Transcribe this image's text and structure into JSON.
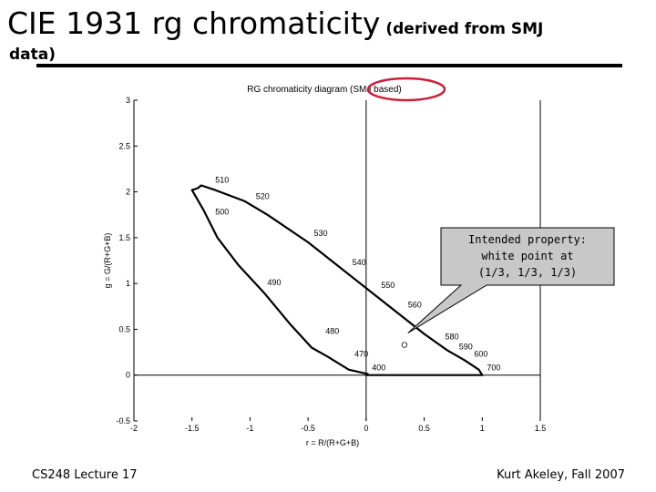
{
  "slide": {
    "title_main": "CIE 1931 rg chromaticity",
    "title_paren": "(derived from SMJ",
    "title_line2": "data)",
    "footer_left": "CS248 Lecture 17",
    "footer_right": "Kurt Akeley, Fall 2007"
  },
  "callout": {
    "lines": [
      "Intended property:",
      "white point at",
      "(1/3, 1/3, 1/3)"
    ]
  },
  "colors": {
    "highlight_ellipse": "#cc1f3a",
    "callout_fill": "#c8c8c8",
    "curve": "#000000"
  },
  "chart_data": {
    "type": "line",
    "title": "RG chromaticity diagram (SMJ based)",
    "xlabel": "r = R/(R+G+B)",
    "ylabel": "g = G/(R+G+B)",
    "xlim": [
      -2,
      1.5
    ],
    "ylim": [
      -0.5,
      3
    ],
    "xticks": [
      -2,
      -1.5,
      -1,
      -0.5,
      0,
      0.5,
      1,
      1.5
    ],
    "xtick_labels": [
      "-2",
      "-1.5",
      "-1",
      "-0.5",
      "0",
      "0.5",
      "1",
      "1.5"
    ],
    "yticks": [
      -0.5,
      0,
      0.5,
      1,
      1.5,
      2,
      2.5,
      3
    ],
    "ytick_labels": [
      "-0.5",
      "0",
      "0.5",
      "1",
      "1.5",
      "2",
      "2.5",
      "3"
    ],
    "grid": false,
    "series": [
      {
        "x": [
          0.02,
          -0.15,
          -0.33,
          -0.47,
          -0.65,
          -0.88,
          -1.1,
          -1.28,
          -1.4,
          -1.5,
          -1.45,
          -1.42,
          -1.3,
          -1.05,
          -0.85,
          -0.5,
          -0.2,
          0.1,
          0.35,
          0.5,
          0.7,
          0.85,
          0.97,
          1.0,
          0.75,
          0.35,
          0.0,
          0.02
        ],
        "y": [
          0.01,
          0.06,
          0.2,
          0.3,
          0.55,
          0.9,
          1.2,
          1.5,
          1.8,
          2.02,
          2.04,
          2.07,
          2.02,
          1.9,
          1.75,
          1.45,
          1.15,
          0.85,
          0.6,
          0.45,
          0.27,
          0.16,
          0.06,
          0.0,
          0.0,
          0.0,
          0.0,
          0.01
        ]
      }
    ],
    "wavelength_labels": [
      {
        "text": "400",
        "x": 0.05,
        "y": 0.05
      },
      {
        "text": "470",
        "x": -0.1,
        "y": 0.2
      },
      {
        "text": "480",
        "x": -0.35,
        "y": 0.45
      },
      {
        "text": "490",
        "x": -0.85,
        "y": 0.98
      },
      {
        "text": "500",
        "x": -1.3,
        "y": 1.75
      },
      {
        "text": "510",
        "x": -1.3,
        "y": 2.1
      },
      {
        "text": "520",
        "x": -0.95,
        "y": 1.92
      },
      {
        "text": "530",
        "x": -0.45,
        "y": 1.52
      },
      {
        "text": "540",
        "x": -0.12,
        "y": 1.2
      },
      {
        "text": "550",
        "x": 0.13,
        "y": 0.95
      },
      {
        "text": "560",
        "x": 0.36,
        "y": 0.74
      },
      {
        "text": "580",
        "x": 0.68,
        "y": 0.39
      },
      {
        "text": "590",
        "x": 0.8,
        "y": 0.28
      },
      {
        "text": "600",
        "x": 0.93,
        "y": 0.2
      },
      {
        "text": "700",
        "x": 1.04,
        "y": 0.05
      }
    ],
    "white_point": {
      "x": 0.33,
      "y": 0.33
    }
  }
}
